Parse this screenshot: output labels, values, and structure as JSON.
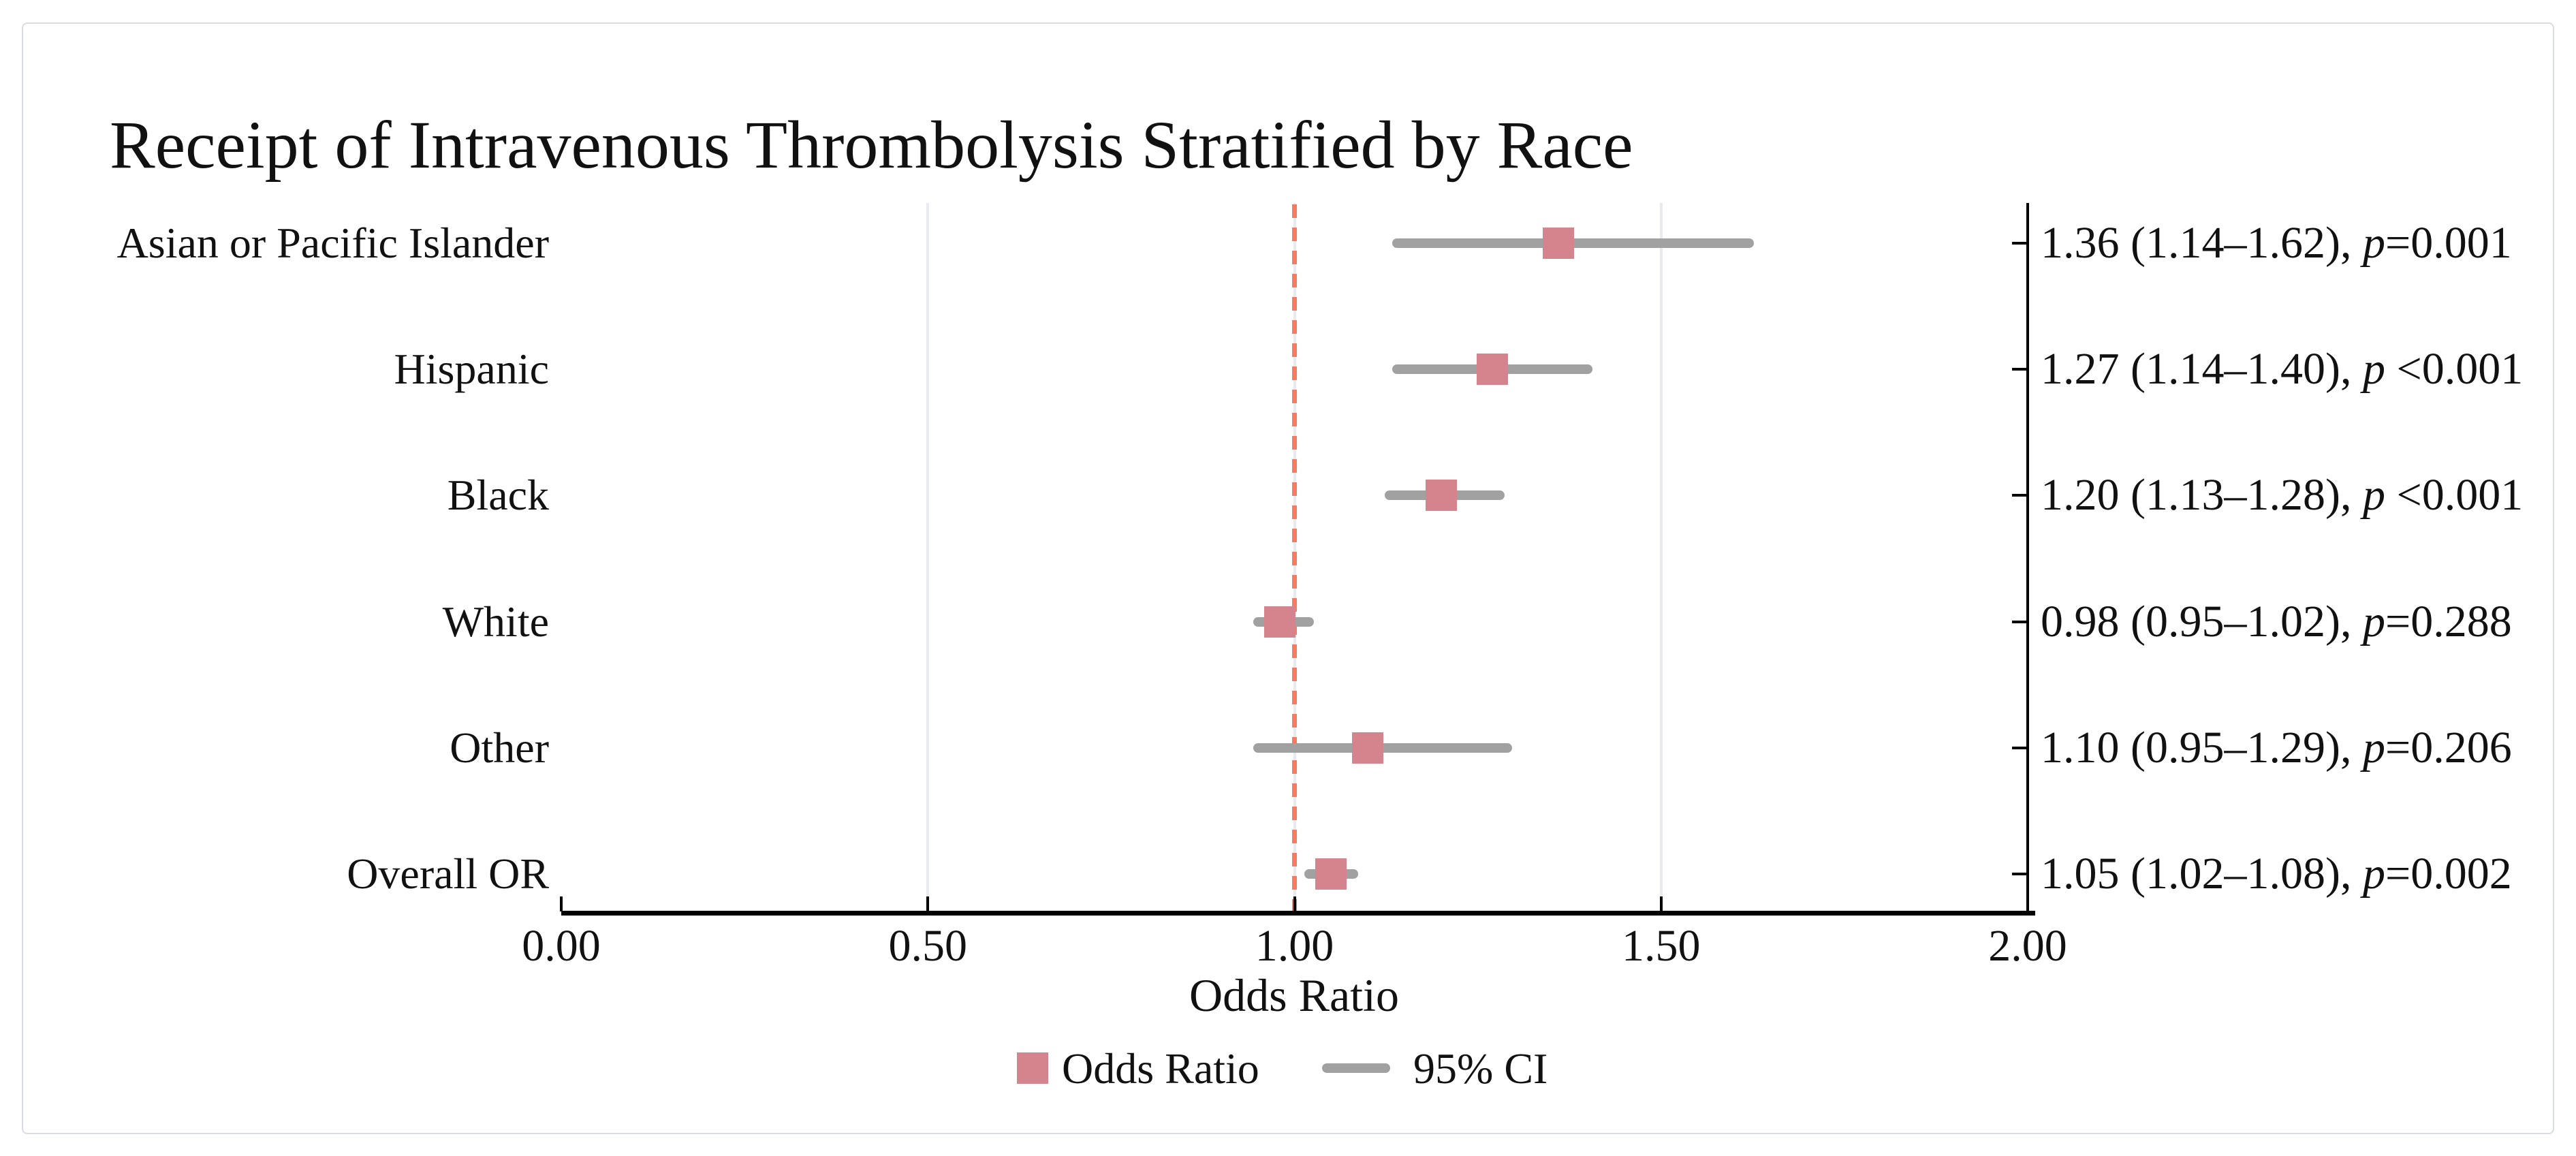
{
  "chart_data": {
    "type": "forest",
    "title": "Receipt of Intravenous Thrombolysis Stratified by Race",
    "xlabel": "Odds Ratio",
    "xlim": [
      0.0,
      2.0
    ],
    "x_ticks": [
      {
        "value": 0.0,
        "label": "0.00"
      },
      {
        "value": 0.5,
        "label": "0.50"
      },
      {
        "value": 1.0,
        "label": "1.00"
      },
      {
        "value": 1.5,
        "label": "1.50"
      },
      {
        "value": 2.0,
        "label": "2.00"
      }
    ],
    "gridline_values": [
      0.5,
      1.0,
      1.5
    ],
    "reference_line_value": 1.0,
    "grid_on": true,
    "legend_position": "bottom-center",
    "rows": [
      {
        "label": "Asian or Pacific Islander",
        "or": 1.36,
        "ci_low": 1.14,
        "ci_high": 1.62,
        "annotation_pre": "1.36 (1.14–1.62), ",
        "p_label": "p",
        "annotation_post": "=0.001"
      },
      {
        "label": "Hispanic",
        "or": 1.27,
        "ci_low": 1.14,
        "ci_high": 1.4,
        "annotation_pre": "1.27 (1.14–1.40), ",
        "p_label": "p",
        "annotation_post": " <0.001"
      },
      {
        "label": "Black",
        "or": 1.2,
        "ci_low": 1.13,
        "ci_high": 1.28,
        "annotation_pre": "1.20 (1.13–1.28), ",
        "p_label": "p",
        "annotation_post": " <0.001"
      },
      {
        "label": "White",
        "or": 0.98,
        "ci_low": 0.95,
        "ci_high": 1.02,
        "annotation_pre": "0.98 (0.95–1.02), ",
        "p_label": "p",
        "annotation_post": "=0.288"
      },
      {
        "label": "Other",
        "or": 1.1,
        "ci_low": 0.95,
        "ci_high": 1.29,
        "annotation_pre": "1.10 (0.95–1.29), ",
        "p_label": "p",
        "annotation_post": "=0.206"
      },
      {
        "label": "Overall OR",
        "or": 1.05,
        "ci_low": 1.02,
        "ci_high": 1.08,
        "annotation_pre": "1.05 (1.02–1.08), ",
        "p_label": "p",
        "annotation_post": "=0.002"
      }
    ],
    "legend": {
      "marker_label": "Odds Ratio",
      "ci_label": "95% CI"
    },
    "colors": {
      "marker": "#d5838c",
      "ci_bar": "#a1a1a1",
      "reference_line": "#f87a5f",
      "gridline": "#e7eaee",
      "axis": "#000000",
      "text": "#111111",
      "card_border": "#d9dde1",
      "background": "#ffffff"
    }
  }
}
